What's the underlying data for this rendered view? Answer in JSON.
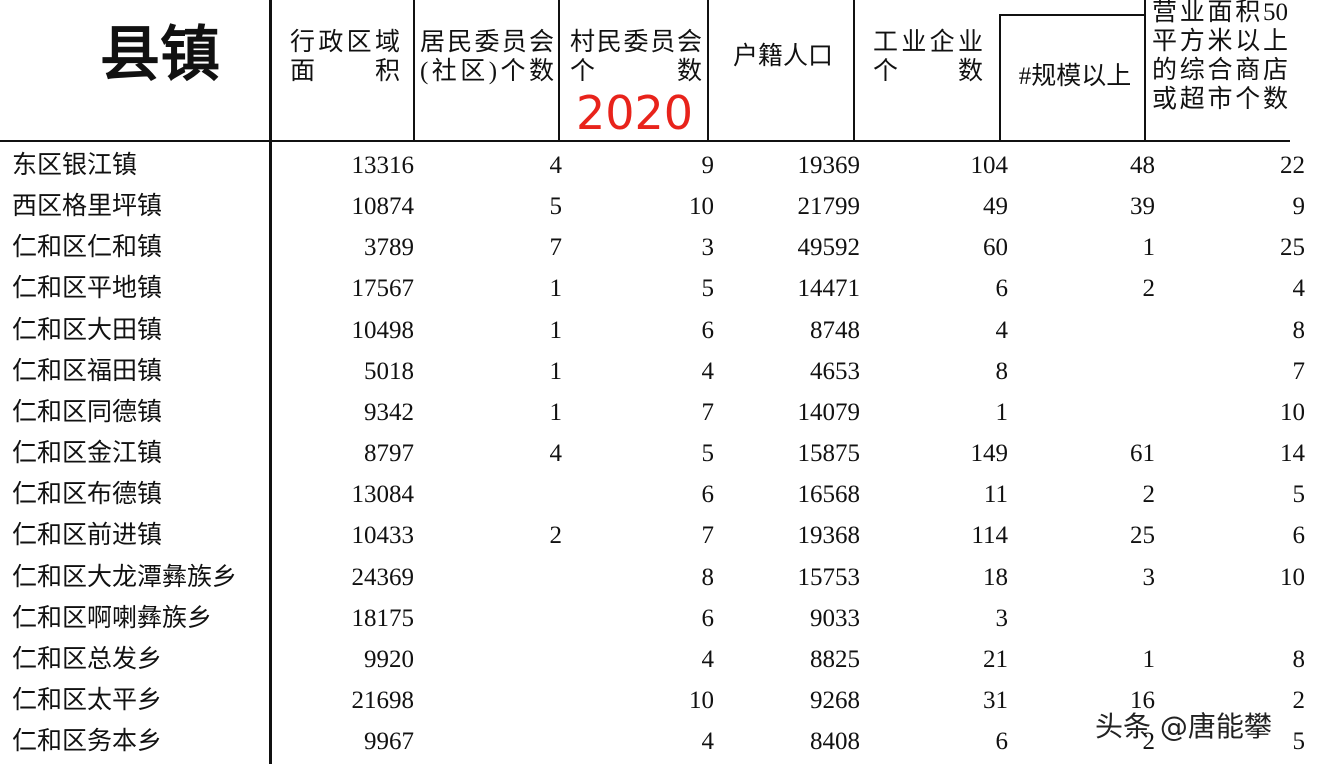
{
  "header": {
    "columns": [
      {
        "lines": [
          "县镇"
        ]
      },
      {
        "lines": [
          "行政区域",
          "面　　积"
        ]
      },
      {
        "lines": [
          "居民委员会",
          "(社区)个数"
        ]
      },
      {
        "lines": [
          "村民委员会",
          "个　　　数"
        ]
      },
      {
        "lines": [
          "户籍人口"
        ]
      },
      {
        "lines": [
          "工业企业",
          "个　　数"
        ]
      },
      {
        "lines": [
          "#规模以上"
        ]
      },
      {
        "lines": [
          "营业面积50",
          "平方米以上",
          "的综合商店",
          "或超市个数"
        ]
      }
    ],
    "annotation": "2020"
  },
  "table": {
    "rows": [
      [
        "东区银江镇",
        13316,
        4,
        9,
        19369,
        104,
        48,
        22
      ],
      [
        "西区格里坪镇",
        10874,
        5,
        10,
        21799,
        49,
        39,
        9
      ],
      [
        "仁和区仁和镇",
        3789,
        7,
        3,
        49592,
        60,
        1,
        25
      ],
      [
        "仁和区平地镇",
        17567,
        1,
        5,
        14471,
        6,
        2,
        4
      ],
      [
        "仁和区大田镇",
        10498,
        1,
        6,
        8748,
        4,
        null,
        8
      ],
      [
        "仁和区福田镇",
        5018,
        1,
        4,
        4653,
        8,
        null,
        7
      ],
      [
        "仁和区同德镇",
        9342,
        1,
        7,
        14079,
        1,
        null,
        10
      ],
      [
        "仁和区金江镇",
        8797,
        4,
        5,
        15875,
        149,
        61,
        14
      ],
      [
        "仁和区布德镇",
        13084,
        null,
        6,
        16568,
        11,
        2,
        5
      ],
      [
        "仁和区前进镇",
        10433,
        2,
        7,
        19368,
        114,
        25,
        6
      ],
      [
        "仁和区大龙潭彝族乡",
        24369,
        null,
        8,
        15753,
        18,
        3,
        10
      ],
      [
        "仁和区啊喇彝族乡",
        18175,
        null,
        6,
        9033,
        3,
        null,
        null
      ],
      [
        "仁和区总发乡",
        9920,
        null,
        4,
        8825,
        21,
        1,
        8
      ],
      [
        "仁和区太平乡",
        21698,
        null,
        10,
        9268,
        31,
        16,
        2
      ],
      [
        "仁和区务本乡",
        9967,
        null,
        4,
        8408,
        6,
        2,
        5
      ]
    ]
  },
  "watermark": "头条 @唐能攀"
}
